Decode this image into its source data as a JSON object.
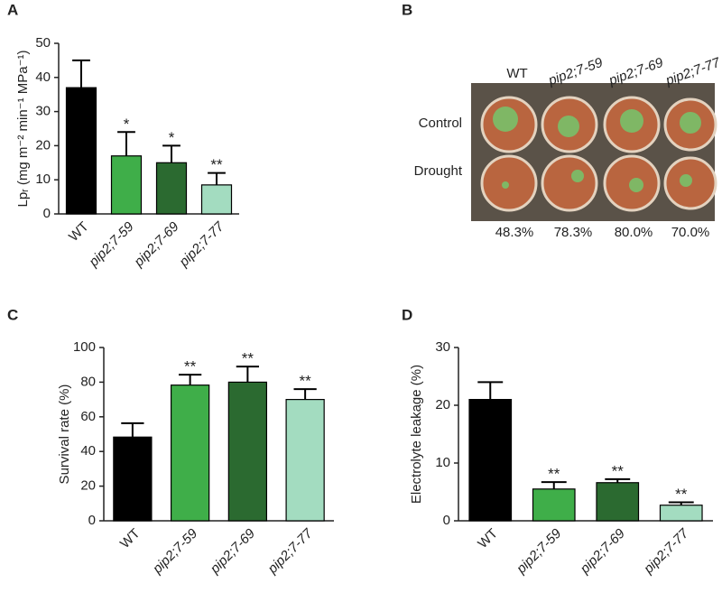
{
  "chart_data": [
    {
      "type": "bar",
      "panel_label": "A",
      "ylabel": "Lpᵣ (mg m⁻² min⁻¹ MPa⁻¹)",
      "categories": [
        "WT",
        "pip2;7-59",
        "pip2;7-69",
        "pip2;7-77"
      ],
      "values": [
        37,
        17,
        15,
        8.5
      ],
      "errors": [
        8,
        7,
        5,
        3.5
      ],
      "significance": [
        null,
        "*",
        "*",
        "**"
      ],
      "colors": [
        "#000000",
        "#3fae49",
        "#2b6a30",
        "#a3dcc0"
      ],
      "ylim": [
        0,
        50
      ],
      "yticks": [
        0,
        10,
        20,
        30,
        40,
        50
      ]
    },
    {
      "type": "bar",
      "panel_label": "C",
      "ylabel": "Survival rate (%)",
      "categories": [
        "WT",
        "pip2;7-59",
        "pip2;7-69",
        "pip2;7-77"
      ],
      "values": [
        48.3,
        78.3,
        80,
        70
      ],
      "errors": [
        8,
        6,
        9,
        6
      ],
      "significance": [
        null,
        "**",
        "**",
        "**"
      ],
      "colors": [
        "#000000",
        "#3fae49",
        "#2b6a30",
        "#a3dcc0"
      ],
      "ylim": [
        0,
        100
      ],
      "yticks": [
        0,
        20,
        40,
        60,
        80,
        100
      ]
    },
    {
      "type": "bar",
      "panel_label": "D",
      "ylabel": "Electrolyte leakage (%)",
      "categories": [
        "WT",
        "pip2;7-59",
        "pip2;7-69",
        "pip2;7-77"
      ],
      "values": [
        21,
        5.5,
        6.6,
        2.7
      ],
      "errors": [
        3,
        1.2,
        0.6,
        0.5
      ],
      "significance": [
        null,
        "**",
        "**",
        "**"
      ],
      "colors": [
        "#000000",
        "#3fae49",
        "#2b6a30",
        "#a3dcc0"
      ],
      "ylim": [
        0,
        30
      ],
      "yticks": [
        0,
        10,
        20,
        30
      ]
    }
  ],
  "photo_panel": {
    "panel_label": "B",
    "columns": [
      "WT",
      "pip2;7-59",
      "pip2;7-69",
      "pip2;7-77"
    ],
    "rows": [
      "Control",
      "Drought"
    ],
    "survival_labels": [
      "48.3%",
      "78.3%",
      "80.0%",
      "70.0%"
    ]
  }
}
